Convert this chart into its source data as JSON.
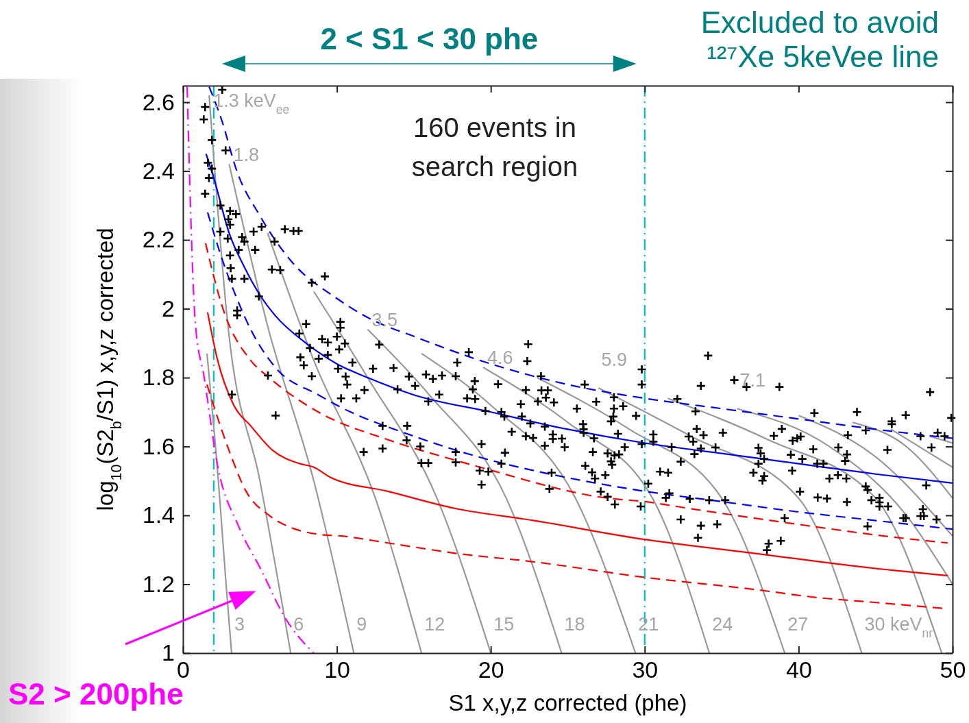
{
  "chart_data": {
    "type": "scatter",
    "title": "2 < S1 < 30 phe",
    "xlabel": "S1 x,y,z corrected (phe)",
    "ylabel": "log$_{10}$(S2$_{b}$/S1) x,y,z corrected",
    "xlim": [
      0,
      50
    ],
    "xticks": [
      0,
      10,
      20,
      30,
      40,
      50
    ],
    "ylim": [
      1,
      2.648
    ],
    "yticks": [
      1,
      1.2,
      1.4,
      1.6,
      1.8,
      2,
      2.2,
      2.4,
      2.6
    ],
    "grid": false,
    "legend": "bottom left",
    "annotations": [
      "Excluded to avoid\n¹²⁷Xe 5keVee line",
      "160 events in\nsearch region",
      {
        "text": "1.3 keV$_{ee}$",
        "x": 1.7,
        "y": 2.62
      },
      {
        "text": "1.8",
        "x": 3.0,
        "y": 2.42
      },
      {
        "text": "3.5",
        "x": 12,
        "y": 1.94
      },
      {
        "text": "4.6",
        "x": 19.5,
        "y": 1.83
      },
      {
        "text": "5.9",
        "x": 27,
        "y": 1.77
      },
      {
        "text": "7.1",
        "x": 36,
        "y": 1.71
      },
      {
        "text": "3",
        "x": 3.16,
        "y": 1.0
      },
      {
        "text": "6",
        "x": 7.0,
        "y": 1.0
      },
      {
        "text": "9",
        "x": 11.1,
        "y": 1.0
      },
      {
        "text": "12",
        "x": 15.5,
        "y": 1.0
      },
      {
        "text": "15",
        "x": 20,
        "y": 1.0
      },
      {
        "text": "18",
        "x": 24.6,
        "y": 1.0
      },
      {
        "text": "21",
        "x": 29.4,
        "y": 1.0
      },
      {
        "text": "24",
        "x": 34.2,
        "y": 1.0
      },
      {
        "text": "27",
        "x": 39.1,
        "y": 1.0
      },
      {
        "text": "30 keV$_{nr}$",
        "x": 44.1,
        "y": 1.0
      }
    ],
    "ref_lines": [
      {
        "axis": "x",
        "value": 2,
        "color": "#00c0c0",
        "line_style": "dashdot"
      },
      {
        "axis": "x",
        "value": 30,
        "color": "#00c0c0",
        "line_style": "dashdot"
      }
    ],
    "series": [
      {
        "type": "line",
        "color": "#999999",
        "line_style": "solid",
        "x": [
          1.56,
          2.3,
          2.8,
          3.16
        ],
        "values": [
          1.87,
          1.5,
          1.2,
          1.0
        ]
      },
      {
        "type": "line",
        "color": "#999999",
        "line_style": "solid",
        "x": [
          1.7,
          2.9,
          5.0,
          7.0
        ],
        "values": [
          2.62,
          1.96,
          1.5,
          1.0
        ]
      },
      {
        "type": "line",
        "color": "#999999",
        "line_style": "solid",
        "x": [
          3.0,
          5.5,
          8.5,
          11.1
        ],
        "values": [
          2.42,
          1.95,
          1.5,
          1.0
        ]
      },
      {
        "type": "line",
        "color": "#999999",
        "line_style": "solid",
        "x": [
          5.5,
          8.5,
          12.5,
          15.5
        ],
        "values": [
          2.22,
          1.85,
          1.45,
          1.0
        ]
      },
      {
        "type": "line",
        "color": "#999999",
        "line_style": "solid",
        "x": [
          8.5,
          12,
          16.5,
          20
        ],
        "values": [
          2.05,
          1.8,
          1.45,
          1.0
        ]
      },
      {
        "type": "line",
        "color": "#999999",
        "line_style": "solid",
        "x": [
          12,
          16,
          21,
          24.6
        ],
        "values": [
          1.94,
          1.75,
          1.45,
          1.0
        ]
      },
      {
        "type": "line",
        "color": "#999999",
        "line_style": "solid",
        "x": [
          15.5,
          20,
          25.5,
          29.4
        ],
        "values": [
          1.87,
          1.72,
          1.45,
          1.0
        ]
      },
      {
        "type": "line",
        "color": "#999999",
        "line_style": "solid",
        "x": [
          19.5,
          25,
          30.5,
          34.2
        ],
        "values": [
          1.83,
          1.67,
          1.45,
          1.0
        ]
      },
      {
        "type": "line",
        "color": "#999999",
        "line_style": "solid",
        "x": [
          23,
          29,
          35,
          39.1
        ],
        "values": [
          1.8,
          1.65,
          1.45,
          1.0
        ]
      },
      {
        "type": "line",
        "color": "#999999",
        "line_style": "solid",
        "x": [
          27,
          33,
          40,
          44.1
        ],
        "values": [
          1.77,
          1.63,
          1.45,
          1.0
        ]
      },
      {
        "type": "line",
        "color": "#999999",
        "line_style": "solid",
        "x": [
          31.5,
          38,
          45,
          49.3
        ],
        "values": [
          1.74,
          1.62,
          1.45,
          1.0
        ]
      },
      {
        "type": "line",
        "color": "#999999",
        "line_style": "solid",
        "x": [
          36,
          42,
          47,
          50
        ],
        "values": [
          1.71,
          1.6,
          1.4,
          1.2
        ]
      },
      {
        "type": "line",
        "color": "#999999",
        "line_style": "solid",
        "x": [
          40,
          45,
          50
        ],
        "values": [
          1.69,
          1.57,
          1.34
        ]
      },
      {
        "type": "line",
        "color": "#999999",
        "line_style": "solid",
        "x": [
          43.5,
          47,
          50
        ],
        "values": [
          1.67,
          1.6,
          1.45
        ]
      },
      {
        "type": "line",
        "color": "#999999",
        "line_style": "solid",
        "x": [
          46,
          50
        ],
        "values": [
          1.65,
          1.54
        ]
      },
      {
        "type": "line",
        "color": "#999999",
        "line_style": "solid",
        "x": [
          48.5,
          50
        ],
        "values": [
          1.63,
          1.61
        ]
      },
      {
        "type": "line",
        "name": "S2 > 200phe",
        "color": "#ff00ff",
        "line_style": "dashdot",
        "x": [
          0.27,
          0.8,
          1.38,
          2.27,
          3.6,
          5.1,
          6.6,
          8.5
        ],
        "values": [
          2.645,
          1.96,
          1.8,
          1.54,
          1.37,
          1.24,
          1.105,
          1.0
        ]
      },
      {
        "type": "line",
        "color": "#ff0000",
        "line_style": "dashed",
        "x": [
          1.56,
          2.9,
          4.1,
          5.6,
          7.3,
          8.8,
          10.3,
          13.3,
          17.7,
          22.8,
          30,
          37.1,
          41.5,
          44.2,
          49.4
        ],
        "values": [
          1.78,
          1.6,
          1.47,
          1.4,
          1.36,
          1.345,
          1.34,
          1.32,
          1.29,
          1.265,
          1.22,
          1.185,
          1.16,
          1.15,
          1.13
        ]
      },
      {
        "type": "line",
        "color": "#ff0000",
        "line_style": "solid",
        "x": [
          1.6,
          2.2,
          3.3,
          4.4,
          5.8,
          7.6,
          8.5,
          9.6,
          13.3,
          17.7,
          22.8,
          30,
          37.1,
          44.2,
          49.7
        ],
        "values": [
          1.99,
          1.86,
          1.72,
          1.66,
          1.59,
          1.55,
          1.54,
          1.51,
          1.47,
          1.42,
          1.385,
          1.33,
          1.29,
          1.25,
          1.225
        ]
      },
      {
        "type": "line",
        "color": "#ff0000",
        "line_style": "dashed",
        "x": [
          1.47,
          2.6,
          4.4,
          5.6,
          8.8,
          13.3,
          17.7,
          19.3,
          27.6,
          30,
          32.9,
          39,
          47.5,
          49.7
        ],
        "values": [
          2.19,
          2.0,
          1.85,
          1.8,
          1.7,
          1.62,
          1.56,
          1.54,
          1.45,
          1.44,
          1.42,
          1.38,
          1.33,
          1.32
        ]
      },
      {
        "type": "line",
        "color": "#0000ff",
        "line_style": "dashed",
        "x": [
          1.6,
          2.5,
          3.5,
          4.4,
          6,
          8.8,
          10,
          15,
          20,
          22.8,
          30,
          35,
          40,
          45,
          50
        ],
        "values": [
          2.28,
          2.15,
          2.03,
          1.94,
          1.83,
          1.75,
          1.72,
          1.63,
          1.56,
          1.53,
          1.47,
          1.44,
          1.41,
          1.385,
          1.36
        ]
      },
      {
        "type": "line",
        "color": "#0000ff",
        "line_style": "solid",
        "x": [
          1.5,
          2,
          3,
          4,
          5,
          6,
          8,
          10,
          12,
          15,
          20,
          25,
          30,
          35,
          40,
          45,
          50
        ],
        "values": [
          2.45,
          2.38,
          2.22,
          2.12,
          2.04,
          1.98,
          1.9,
          1.84,
          1.8,
          1.75,
          1.7,
          1.65,
          1.61,
          1.58,
          1.55,
          1.52,
          1.494
        ]
      },
      {
        "type": "line",
        "color": "#0000ff",
        "line_style": "dashed",
        "x": [
          1.7,
          2.5,
          3.5,
          5,
          7,
          10,
          12.2,
          15,
          19.3,
          25,
          30,
          35,
          40,
          45,
          50
        ],
        "values": [
          2.645,
          2.55,
          2.4,
          2.27,
          2.14,
          2.03,
          1.97,
          1.92,
          1.85,
          1.78,
          1.74,
          1.71,
          1.68,
          1.65,
          1.624
        ]
      },
      {
        "color": "#000000",
        "marker": "cross",
        "x": [
          2.55,
          1.44,
          1.35,
          1.88,
          2.77,
          1.62,
          1.88,
          1.69,
          1.44,
          2.43,
          3.06,
          3.44,
          2.95,
          3.06,
          2.43,
          4.59,
          5.11,
          6.62,
          7.18,
          7.51,
          2.91,
          3.84,
          3.99,
          5.95,
          3.62,
          4.69,
          3.06,
          3.1,
          5.78,
          6.32,
          3.18,
          3.99,
          8.37,
          9.22,
          4.93,
          3.52,
          3.52,
          8.0,
          10.23,
          10.23,
          7.56,
          9.04,
          9.41,
          10.0,
          10.52,
          10.15,
          12.75,
          8.25,
          7.63,
          8.82,
          9.41,
          7.85,
          10.08,
          11.01,
          12.35,
          13.68,
          8.37,
          10.57,
          10.67,
          14.68,
          15.79,
          16.24,
          16.83,
          15.08,
          5.52,
          11.79,
          13.94,
          16.65,
          15.94,
          3.18,
          10.27,
          11.26,
          6.02,
          12.97,
          14.57,
          12.97,
          14.53,
          11.74,
          15.42,
          15.49,
          15.94,
          17.72,
          17.82,
          18.57,
          22.43,
          22.37,
          18.96,
          18.83,
          18.46,
          18.98,
          20.47,
          22.28,
          19.65,
          20.69,
          20.88,
          21.95,
          22.02,
          22.57,
          21.36,
          22.28,
          22.75,
          17.72,
          17.72,
          19.4,
          20.92,
          20.69,
          19.28,
          19.84,
          19.4,
          23.26,
          23.29,
          23.7,
          23.58,
          23.06,
          24.1,
          26.1,
          26.85,
          25.59,
          28.0,
          28.0,
          27.96,
          27.81,
          28.6,
          29.44,
          29.81,
          29.81,
          23.51,
          24.03,
          24.03,
          24.62,
          24.8,
          23.51,
          25.99,
          26.03,
          26.03,
          26.7,
          28.26,
          29.81,
          26.63,
          27.59,
          28.04,
          28.33,
          27.81,
          27.88,
          28.7,
          26.14,
          26.58,
          26.77,
          27.44,
          23.95,
          23.81,
          27.14,
          27.59,
          28.06,
          29.74,
          30.23,
          30.56,
          30.56,
          31.75,
          32.12,
          33.3,
          32.34,
          31.0,
          31.52,
          31.6,
          31.37,
          32.34,
          33.65,
          34.71,
          32.93,
          34.19,
          35.23,
          34.12,
          33.65,
          35.82,
          36.61,
          38.75,
          41.02,
          43.79,
          46.96,
          48.54,
          49.92,
          46.05,
          46.05,
          44.36,
          43.2,
          47.92,
          49.03,
          49.48,
          38.91,
          38.39,
          33.38,
          33.82,
          35.08,
          32.86,
          33.15,
          33.65,
          34.6,
          33.23,
          37.39,
          37.53,
          37.76,
          37.39,
          37.06,
          37.76,
          37.65,
          39.61,
          39.91,
          40.13,
          39.49,
          40.24,
          39.58,
          40.95,
          41.21,
          41.61,
          42.58,
          43.14,
          43.02,
          42.0,
          42.55,
          43.1,
          45.77,
          48.63,
          40.09,
          41.24,
          41.84,
          43.14,
          44.36,
          44.48,
          48.29,
          44.73,
          45.25,
          45.25,
          45.25,
          45.81,
          46.81,
          46.96,
          48.07,
          47.92,
          48.14,
          48.96,
          39.09,
          44.48,
          33.46,
          38.05,
          37.94,
          38.84
        ],
        "values": [
          2.636,
          2.586,
          2.55,
          2.49,
          2.46,
          2.424,
          2.407,
          2.38,
          2.334,
          2.3,
          2.284,
          2.275,
          2.26,
          2.244,
          2.224,
          2.224,
          2.238,
          2.231,
          2.226,
          2.226,
          2.204,
          2.208,
          2.195,
          2.195,
          2.171,
          2.171,
          2.155,
          2.118,
          2.114,
          2.112,
          2.087,
          2.087,
          2.076,
          2.094,
          2.036,
          1.995,
          1.981,
          1.956,
          1.962,
          1.945,
          1.928,
          1.912,
          1.902,
          1.919,
          1.899,
          1.882,
          1.896,
          1.886,
          1.859,
          1.855,
          1.866,
          1.836,
          1.826,
          1.844,
          1.826,
          1.828,
          1.804,
          1.803,
          1.78,
          1.803,
          1.809,
          1.796,
          1.806,
          1.776,
          1.806,
          1.764,
          1.766,
          1.751,
          1.731,
          1.751,
          1.74,
          1.74,
          1.69,
          1.66,
          1.66,
          1.594,
          1.618,
          1.584,
          1.6,
          1.552,
          1.552,
          1.804,
          1.844,
          1.874,
          1.897,
          1.848,
          1.79,
          1.766,
          1.74,
          1.738,
          1.781,
          1.764,
          1.703,
          1.7,
          1.687,
          1.723,
          1.687,
          1.667,
          1.643,
          1.63,
          1.625,
          1.584,
          1.554,
          1.607,
          1.582,
          1.55,
          1.53,
          1.527,
          1.489,
          1.804,
          1.763,
          1.763,
          1.742,
          1.731,
          1.728,
          1.78,
          1.73,
          1.71,
          1.743,
          1.71,
          1.687,
          1.673,
          1.717,
          1.689,
          1.824,
          1.78,
          1.658,
          1.635,
          1.622,
          1.623,
          1.598,
          1.602,
          1.665,
          1.65,
          1.64,
          1.624,
          1.637,
          1.607,
          1.584,
          1.58,
          1.574,
          1.577,
          1.557,
          1.547,
          1.598,
          1.544,
          1.525,
          1.507,
          1.517,
          1.524,
          1.477,
          1.469,
          1.454,
          1.432,
          1.426,
          1.492,
          1.635,
          1.614,
          1.598,
          1.738,
          1.702,
          1.556,
          1.527,
          1.524,
          1.464,
          1.451,
          1.388,
          1.37,
          1.374,
          1.448,
          1.444,
          1.444,
          1.864,
          1.776,
          1.793,
          1.773,
          1.773,
          1.697,
          1.7,
          1.691,
          1.758,
          1.683,
          1.673,
          1.665,
          1.647,
          1.633,
          1.63,
          1.64,
          1.63,
          1.651,
          1.631,
          1.651,
          1.633,
          1.64,
          1.629,
          1.614,
          1.594,
          1.597,
          1.578,
          1.596,
          1.58,
          1.564,
          1.55,
          1.524,
          1.514,
          1.501,
          1.617,
          1.624,
          1.629,
          1.576,
          1.564,
          1.53,
          1.592,
          1.55,
          1.55,
          1.597,
          1.577,
          1.558,
          1.507,
          1.517,
          1.507,
          1.59,
          1.597,
          1.469,
          1.452,
          1.449,
          1.439,
          1.484,
          1.474,
          1.487,
          1.444,
          1.451,
          1.438,
          1.426,
          1.426,
          1.392,
          1.392,
          1.418,
          1.398,
          1.398,
          1.388,
          1.392,
          1.368,
          1.335,
          1.318,
          1.299,
          1.326
        ]
      }
    ]
  }
}
